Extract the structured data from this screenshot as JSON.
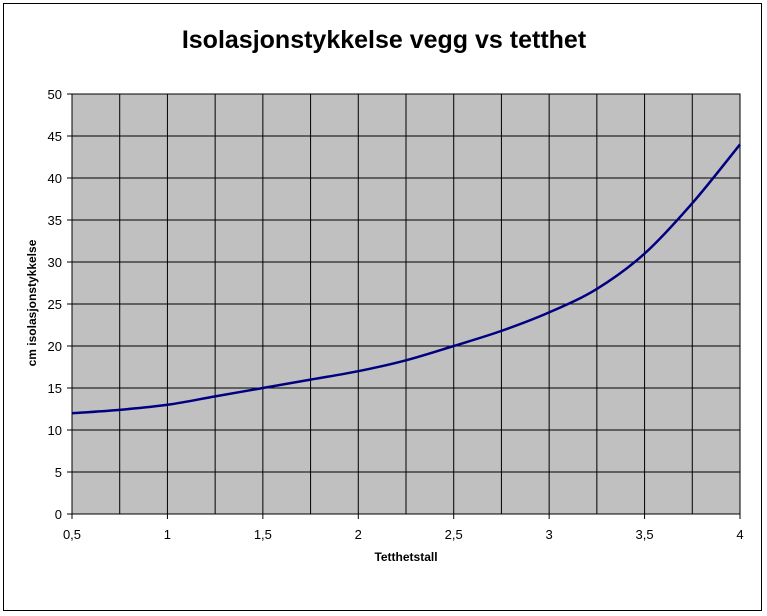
{
  "chart_data": {
    "type": "line",
    "title": "Isolasjonstykkelse vegg vs tetthet",
    "xlabel": "Tetthetstall",
    "ylabel": "cm isolasjonstykkelse",
    "xlim": [
      0.5,
      4
    ],
    "ylim": [
      0,
      50
    ],
    "x_ticks": [
      "0,5",
      "1",
      "1,5",
      "2",
      "2,5",
      "3",
      "3,5",
      "4"
    ],
    "y_ticks": [
      "0",
      "5",
      "10",
      "15",
      "20",
      "25",
      "30",
      "35",
      "40",
      "45",
      "50"
    ],
    "grid": true,
    "legend": "none",
    "series": [
      {
        "x": [
          0.5,
          0.75,
          1.0,
          1.25,
          1.5,
          1.75,
          2.0,
          2.25,
          2.5,
          2.75,
          3.0,
          3.25,
          3.5,
          3.75,
          4.0
        ],
        "y": [
          12,
          12.4,
          13,
          14,
          15,
          16,
          17,
          18.3,
          20,
          21.8,
          24,
          26.8,
          31,
          37,
          44
        ],
        "color": "#000080"
      }
    ],
    "colors": {
      "plot_bg": "#c0c0c0",
      "grid": "#000000",
      "line": "#000080"
    }
  }
}
